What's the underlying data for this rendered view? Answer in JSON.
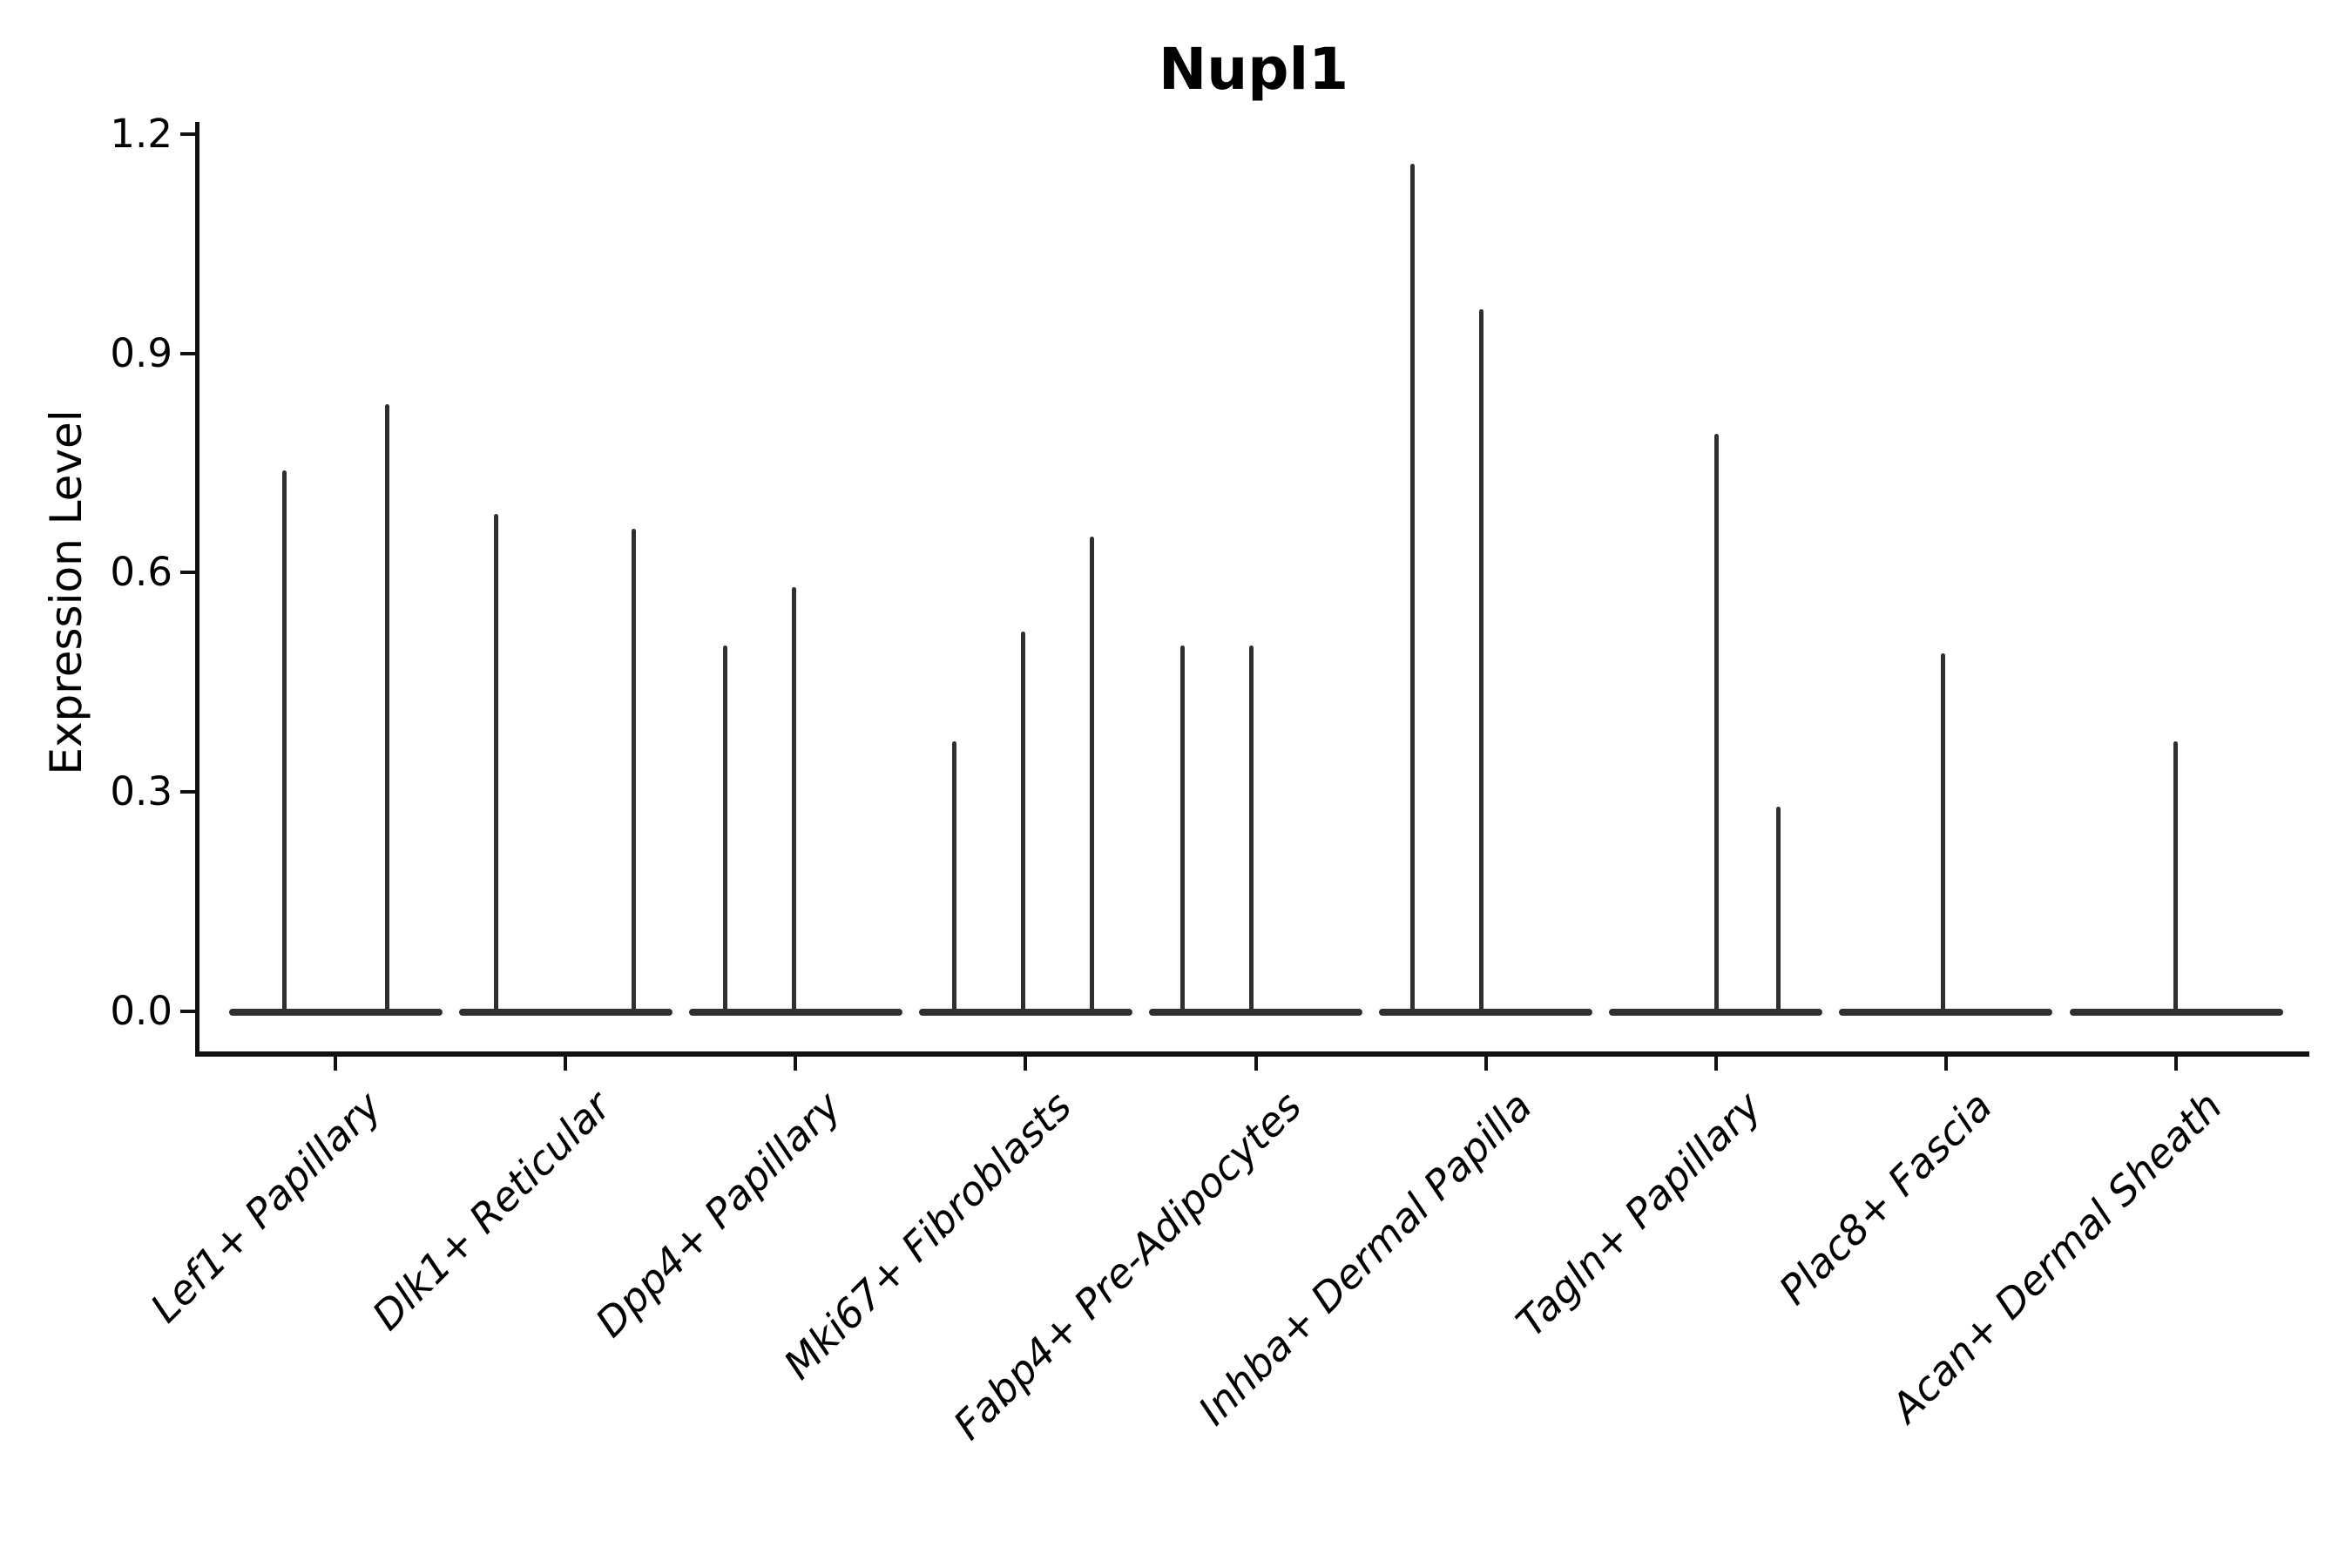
{
  "chart_data": {
    "type": "violin",
    "title": "Nupl1",
    "ylabel": "Expression Level",
    "xlabel": "",
    "yticks": [
      "0.0",
      "0.3",
      "0.6",
      "0.9",
      "1.2"
    ],
    "ylim": [
      -0.06,
      1.25
    ],
    "grid": false,
    "legend": false,
    "x_label_rotation_deg": 45,
    "categories": [
      "Lef1+ Papillary",
      "Dlk1+ Reticular",
      "Dpp4+ Papillary",
      "Mki67+ Fibroblasts",
      "Fabp4+ Pre-Adipocytes",
      "Inhba+ Dermal Papilla",
      "Tagln+ Papillary",
      "Plac8+ Fascia",
      "Acan+ Dermal Sheath"
    ],
    "violins": [
      {
        "category": "Lef1+ Papillary",
        "baseline_value": 0.0,
        "spikes": [
          {
            "value": 0.74,
            "dx": -59
          },
          {
            "value": 0.83,
            "dx": 59
          }
        ]
      },
      {
        "category": "Dlk1+ Reticular",
        "baseline_value": 0.0,
        "spikes": [
          {
            "value": 0.68,
            "dx": -80
          },
          {
            "value": 0.66,
            "dx": 78
          }
        ]
      },
      {
        "category": "Dpp4+ Papillary",
        "baseline_value": 0.0,
        "spikes": [
          {
            "value": 0.5,
            "dx": -81
          },
          {
            "value": 0.58,
            "dx": -2
          }
        ]
      },
      {
        "category": "Mki67+ Fibroblasts",
        "baseline_value": 0.0,
        "spikes": [
          {
            "value": 0.37,
            "dx": -82
          },
          {
            "value": 0.52,
            "dx": -3
          },
          {
            "value": 0.65,
            "dx": 76
          }
        ]
      },
      {
        "category": "Fabp4+ Pre-Adipocytes",
        "baseline_value": 0.0,
        "spikes": [
          {
            "value": 0.5,
            "dx": -84
          },
          {
            "value": 0.5,
            "dx": -5
          }
        ]
      },
      {
        "category": "Inhba+ Dermal Papilla",
        "baseline_value": 0.0,
        "spikes": [
          {
            "value": 1.16,
            "dx": -84
          },
          {
            "value": 0.96,
            "dx": -5
          }
        ]
      },
      {
        "category": "Tagln+ Papillary",
        "baseline_value": 0.0,
        "spikes": [
          {
            "value": 0.79,
            "dx": 1
          },
          {
            "value": 0.28,
            "dx": 72
          }
        ]
      },
      {
        "category": "Plac8+ Fascia",
        "baseline_value": 0.0,
        "spikes": [
          {
            "value": 0.49,
            "dx": -3
          }
        ]
      },
      {
        "category": "Acan+ Dermal Sheath",
        "baseline_value": 0.0,
        "spikes": [
          {
            "value": 0.37,
            "dx": -1
          }
        ]
      }
    ],
    "colors": {
      "violin": "#2f2f2f",
      "axis": "#111111",
      "text": "#000000",
      "background": "#ffffff"
    }
  }
}
